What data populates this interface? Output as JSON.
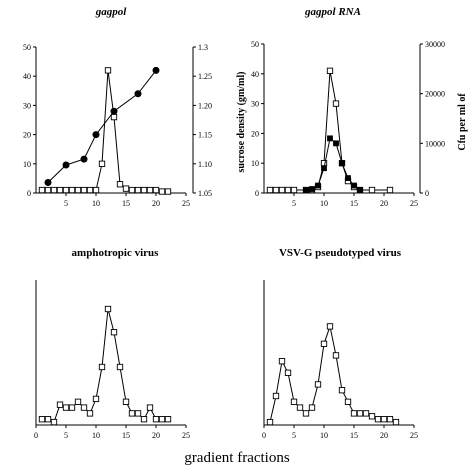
{
  "xlabel": "gradient fractions",
  "chart_data": [
    {
      "type": "line",
      "title": "gagpol",
      "xlim": [
        0,
        25
      ],
      "xticks": [
        5,
        10,
        15,
        20,
        25
      ],
      "ylim": [
        0,
        50
      ],
      "yticks": [
        0,
        10,
        20,
        30,
        40,
        50
      ],
      "y2label": "sucrose density (gm/ml)",
      "y2lim": [
        1.05,
        1.3
      ],
      "y2ticks": [
        "1.05",
        "1.10",
        "1.15",
        "1.20",
        "1.25",
        "1.3"
      ],
      "series": [
        {
          "marker": "open-square",
          "axis": "left",
          "x": [
            1,
            2,
            3,
            4,
            5,
            6,
            7,
            8,
            9,
            10,
            11,
            12,
            13,
            14,
            15,
            16,
            17,
            18,
            19,
            20,
            21,
            22
          ],
          "y": [
            1,
            1,
            1,
            1,
            1,
            1,
            1,
            1,
            1,
            1,
            10,
            42,
            26,
            3,
            1.5,
            1,
            1,
            1,
            1,
            1,
            0.5,
            0.5
          ]
        },
        {
          "marker": "filled-circle",
          "axis": "right",
          "x": [
            2,
            5,
            8,
            10,
            13,
            17,
            20
          ],
          "y": [
            1.068,
            1.098,
            1.108,
            1.15,
            1.19,
            1.22,
            1.26
          ]
        }
      ]
    },
    {
      "type": "line",
      "title": "gagpol RNA",
      "xlim": [
        0,
        25
      ],
      "xticks": [
        5,
        10,
        15,
        20,
        25
      ],
      "ylim": [
        0,
        50
      ],
      "yticks": [
        0,
        10,
        20,
        30,
        40,
        50
      ],
      "y2label": "Cfu per ml of",
      "y2lim": [
        0,
        30000
      ],
      "y2ticks": [
        "0",
        "10000",
        "20000",
        "30000"
      ],
      "series": [
        {
          "marker": "open-square",
          "axis": "left",
          "x": [
            1,
            2,
            3,
            4,
            5,
            7,
            8,
            9,
            10,
            11,
            12,
            13,
            14,
            15,
            16,
            18,
            21
          ],
          "y": [
            1,
            1,
            1,
            1,
            1,
            1,
            1,
            2,
            10,
            41,
            30,
            10,
            4,
            2,
            1,
            1,
            1
          ]
        },
        {
          "marker": "filled-square",
          "axis": "right",
          "x": [
            7,
            8,
            9,
            10,
            11,
            12,
            13,
            14,
            15,
            16
          ],
          "y": [
            500,
            800,
            1500,
            5000,
            11000,
            10000,
            6000,
            3000,
            1500,
            600
          ]
        }
      ]
    },
    {
      "type": "line",
      "title": "amphotropic virus",
      "xlim": [
        0,
        25
      ],
      "xticks": [
        0,
        5,
        10,
        15,
        20,
        25
      ],
      "ylim": [
        0,
        25
      ],
      "series": [
        {
          "marker": "open-square",
          "axis": "left",
          "x": [
            1,
            2,
            3,
            4,
            5,
            6,
            7,
            8,
            9,
            10,
            11,
            12,
            13,
            14,
            15,
            16,
            17,
            18,
            19,
            20,
            21,
            22
          ],
          "y": [
            1,
            1,
            0.5,
            3.5,
            3,
            3,
            4,
            3,
            2,
            4.5,
            10,
            20,
            16,
            10,
            4,
            2,
            2,
            1,
            3,
            1,
            1,
            1
          ]
        }
      ]
    },
    {
      "type": "line",
      "title": "VSV-G pseudotyped virus",
      "xlim": [
        0,
        25
      ],
      "xticks": [
        0,
        5,
        10,
        15,
        20,
        25
      ],
      "ylim": [
        0,
        25
      ],
      "series": [
        {
          "marker": "open-square",
          "axis": "left",
          "x": [
            1,
            2,
            3,
            4,
            5,
            6,
            7,
            8,
            9,
            10,
            11,
            12,
            13,
            14,
            15,
            16,
            17,
            18,
            19,
            20,
            21,
            22
          ],
          "y": [
            0.5,
            5,
            11,
            9,
            4,
            3,
            2,
            3,
            7,
            14,
            17,
            12,
            6,
            4,
            2,
            2,
            2,
            1.5,
            1,
            1,
            1,
            0.5
          ]
        }
      ]
    }
  ]
}
